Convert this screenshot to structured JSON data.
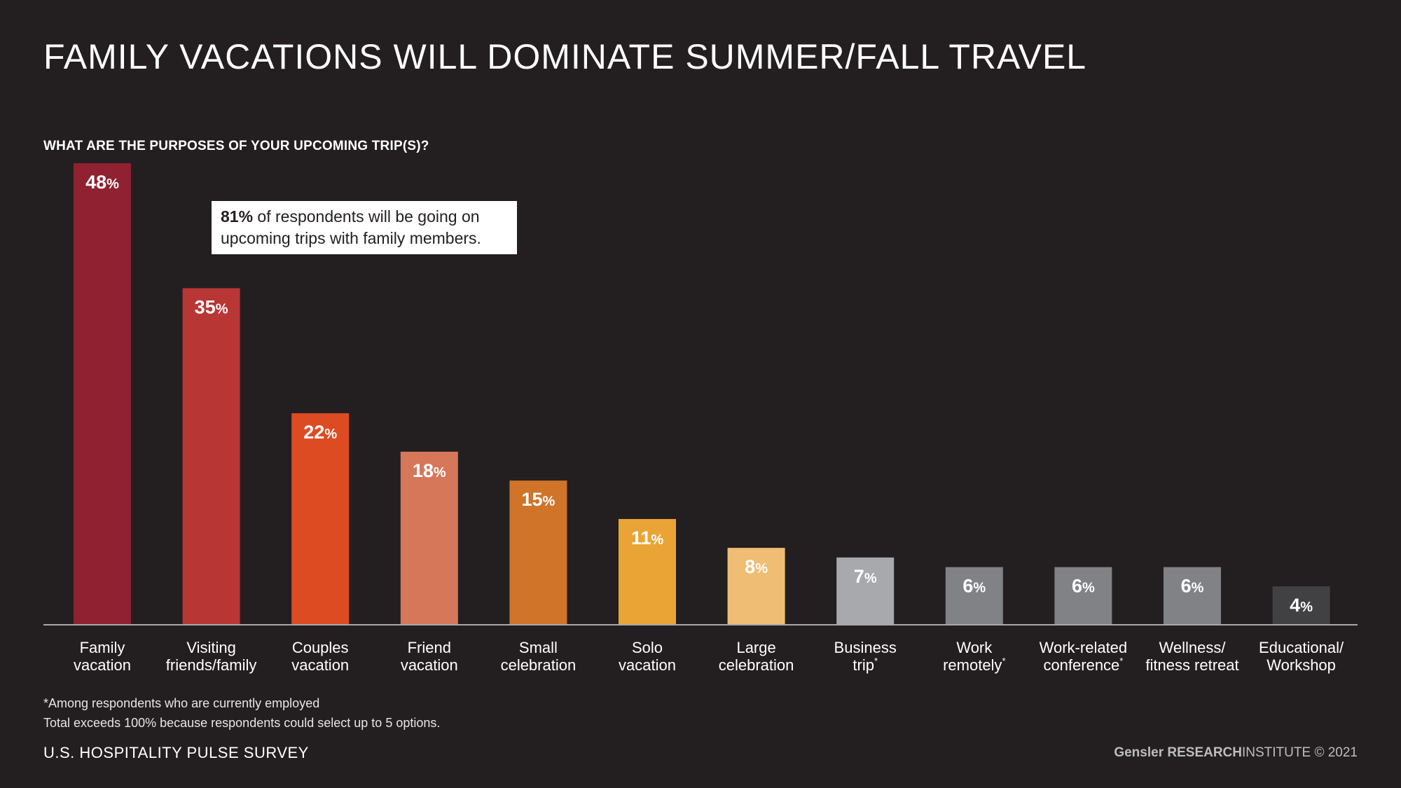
{
  "title": "FAMILY VACATIONS WILL DOMINATE SUMMER/FALL TRAVEL",
  "subtitle": "WHAT ARE THE PURPOSES OF YOUR UPCOMING TRIP(S)?",
  "callout": {
    "value": "81%",
    "text_line1": " of respondents will be going on",
    "text_line2": "upcoming trips with family members."
  },
  "notes": {
    "line1": "*Among respondents who are currently employed",
    "line2": "Total exceeds 100% because respondents could select up to 5 options."
  },
  "footer": {
    "survey": "U.S. HOSPITALITY PULSE SURVEY",
    "brand_name": "Gensler",
    "brand_research": "RESEARCH",
    "brand_institute": "INSTITUTE",
    "copyright": "© 2021"
  },
  "chart_data": {
    "type": "bar",
    "title": "WHAT ARE THE PURPOSES OF YOUR UPCOMING TRIP(S)?",
    "unit": "%",
    "ylim": [
      0,
      48
    ],
    "grid": false,
    "categories": [
      [
        "Family",
        "vacation"
      ],
      [
        "Visiting",
        "friends/family"
      ],
      [
        "Couples",
        "vacation"
      ],
      [
        "Friend",
        "vacation"
      ],
      [
        "Small",
        "celebration"
      ],
      [
        "Solo",
        "vacation"
      ],
      [
        "Large",
        "celebration"
      ],
      [
        "Business",
        "trip*"
      ],
      [
        "Work",
        "remotely*"
      ],
      [
        "Work-related",
        "conference*"
      ],
      [
        "Wellness/",
        "fitness retreat"
      ],
      [
        "Educational/",
        "Workshop"
      ]
    ],
    "values": [
      48,
      35,
      22,
      18,
      15,
      11,
      8,
      7,
      6,
      6,
      6,
      4
    ],
    "colors": [
      "#8f2131",
      "#b83634",
      "#dd4b22",
      "#d6775a",
      "#cf7428",
      "#eaa436",
      "#efbd73",
      "#a7a9ac",
      "#808285",
      "#808285",
      "#808285",
      "#414042"
    ]
  }
}
